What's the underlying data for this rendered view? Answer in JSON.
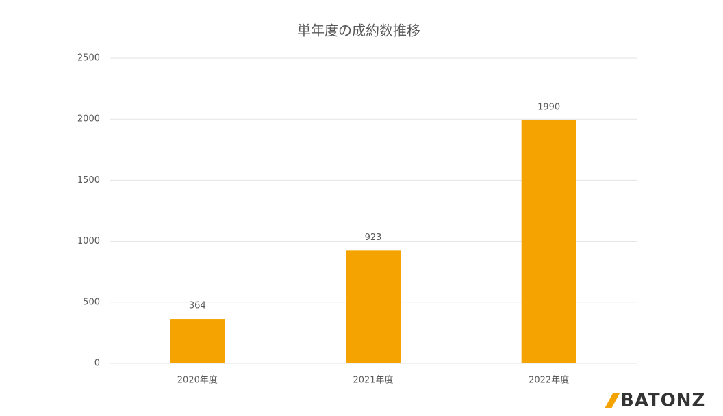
{
  "chart_data": {
    "type": "bar",
    "title": "単年度の成約数推移",
    "categories": [
      "2020年度",
      "2021年度",
      "2022年度"
    ],
    "values": [
      364,
      923,
      1990
    ],
    "color": "#f5a300",
    "ylim": [
      0,
      2500
    ],
    "yticks": [
      0,
      500,
      1000,
      1500,
      2000,
      2500
    ],
    "grid": true,
    "data_labels": true
  },
  "logo": "BATONZ"
}
